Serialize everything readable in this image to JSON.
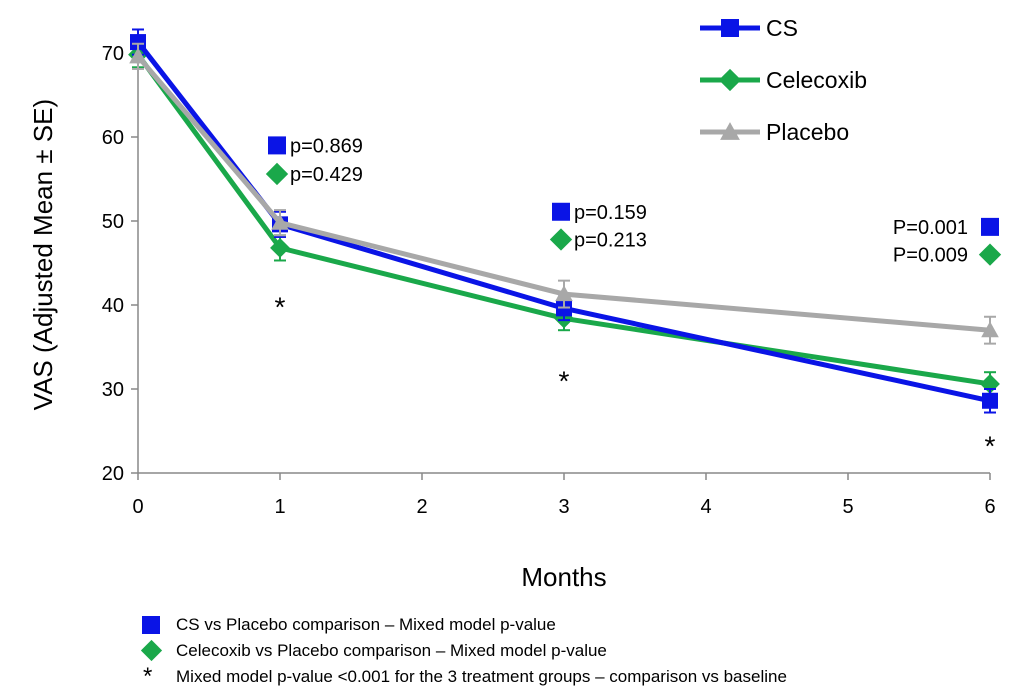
{
  "chart_data": {
    "type": "line",
    "xlabel": "Months",
    "ylabel": "VAS (Adjusted Mean ± SE)",
    "xlim": [
      0,
      6
    ],
    "ylim": [
      20,
      72
    ],
    "x_ticks": [
      0,
      1,
      2,
      3,
      4,
      5,
      6
    ],
    "y_ticks": [
      20,
      30,
      40,
      50,
      60,
      70
    ],
    "grid": false,
    "legend_position": "top-right",
    "series": [
      {
        "name": "CS",
        "color": "#0a14e6",
        "marker": "square",
        "x": [
          0,
          1,
          3,
          6
        ],
        "y": [
          71.3,
          49.6,
          39.6,
          28.6
        ],
        "se": [
          1.5,
          1.5,
          1.4,
          1.4
        ]
      },
      {
        "name": "Celecoxib",
        "color": "#1aa84a",
        "marker": "diamond",
        "x": [
          0,
          1,
          3,
          6
        ],
        "y": [
          69.8,
          46.8,
          38.4,
          30.6
        ],
        "se": [
          1.5,
          1.5,
          1.4,
          1.4
        ]
      },
      {
        "name": "Placebo",
        "color": "#a8a8a8",
        "marker": "triangle",
        "x": [
          0,
          1,
          3,
          6
        ],
        "y": [
          69.6,
          49.8,
          41.3,
          37.0
        ],
        "se": [
          1.5,
          1.5,
          1.6,
          1.6
        ]
      }
    ],
    "annotations": [
      {
        "text": "p=0.869",
        "marker": "square",
        "color": "#0a14e6",
        "x": 1,
        "y": 59
      },
      {
        "text": "p=0.429",
        "marker": "diamond",
        "color": "#1aa84a",
        "x": 1,
        "y": 55.6
      },
      {
        "text": "p=0.159",
        "marker": "square",
        "color": "#0a14e6",
        "x": 3,
        "y": 51.1
      },
      {
        "text": "p=0.213",
        "marker": "diamond",
        "color": "#1aa84a",
        "x": 3,
        "y": 47.8
      },
      {
        "text": "P=0.001",
        "marker": "square",
        "color": "#0a14e6",
        "x": 6,
        "y": 49.3,
        "marker_after": true
      },
      {
        "text": "P=0.009",
        "marker": "diamond",
        "color": "#1aa84a",
        "x": 6,
        "y": 46.0,
        "marker_after": true
      }
    ],
    "stars": [
      {
        "x": 1,
        "y": 39.8
      },
      {
        "x": 3,
        "y": 31.0
      },
      {
        "x": 6,
        "y": 23.3
      }
    ]
  },
  "footnotes": [
    {
      "marker": "square",
      "text": "CS vs Placebo comparison – Mixed model p-value"
    },
    {
      "marker": "diamond",
      "text": "Celecoxib vs Placebo comparison – Mixed model p-value"
    },
    {
      "marker": "star",
      "symbol": "*",
      "text": "Mixed model p-value <0.001 for the 3 treatment groups – comparison vs baseline"
    }
  ]
}
